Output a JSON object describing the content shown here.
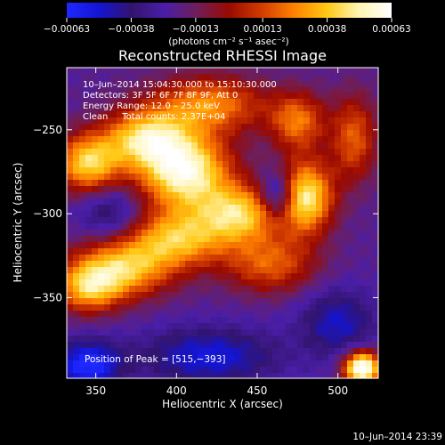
{
  "chart_data": {
    "type": "heatmap",
    "title": "Reconstructed RHESSI Image",
    "xlabel": "Heliocentric X (arcsec)",
    "ylabel": "Heliocentric Y (arcsec)",
    "xlim": [
      332,
      525
    ],
    "ylim": [
      -398,
      -213
    ],
    "x_ticks": [
      350,
      400,
      450,
      500
    ],
    "x_tick_labels": [
      "350",
      "400",
      "450",
      "500"
    ],
    "y_ticks": [
      -250,
      -300,
      -350
    ],
    "y_tick_labels": [
      "−250",
      "−300",
      "−350"
    ],
    "colorbar": {
      "range": [
        -0.00063,
        0.00063
      ],
      "ticks": [
        -0.00063,
        -0.00038,
        -0.00013,
        0.00013,
        0.00038,
        0.00063
      ],
      "tick_labels": [
        "−0.00063",
        "−0.00038",
        "−0.00013",
        "0.00013",
        "0.00038",
        "0.00063"
      ],
      "units_label": "(photons cm⁻² s⁻¹ asec⁻²)",
      "stops": [
        "#1e28ff",
        "#1414d2",
        "#32146e",
        "#4a1ea8",
        "#6e1e5a",
        "#9a0a00",
        "#d23c00",
        "#ff8200",
        "#ffc814",
        "#fff5b4",
        "#ffffff"
      ]
    },
    "annotations": [
      "10–Jun–2014 15:04:30.000 to 15:10:30.000",
      "Detectors: 3F 5F 6F 7F 8F 9F, Att 0",
      "Energy Range: 12.0 – 25.0 keV",
      "Clean     Total counts: 2.37E+04"
    ],
    "peak_label": "Position of Peak = [515,−393]",
    "emission_sources": [
      {
        "x": 405,
        "y": -275,
        "sigma_x": 20,
        "sigma_y": 16,
        "amp": 1.0
      },
      {
        "x": 380,
        "y": -255,
        "sigma_x": 18,
        "sigma_y": 12,
        "amp": 0.75
      },
      {
        "x": 345,
        "y": -270,
        "sigma_x": 14,
        "sigma_y": 12,
        "amp": 0.8
      },
      {
        "x": 420,
        "y": -235,
        "sigma_x": 25,
        "sigma_y": 12,
        "amp": 0.6
      },
      {
        "x": 440,
        "y": -300,
        "sigma_x": 18,
        "sigma_y": 12,
        "amp": 0.75
      },
      {
        "x": 400,
        "y": -315,
        "sigma_x": 22,
        "sigma_y": 12,
        "amp": 0.7
      },
      {
        "x": 365,
        "y": -333,
        "sigma_x": 22,
        "sigma_y": 12,
        "amp": 0.75
      },
      {
        "x": 345,
        "y": -345,
        "sigma_x": 14,
        "sigma_y": 10,
        "amp": 0.6
      },
      {
        "x": 480,
        "y": -290,
        "sigma_x": 12,
        "sigma_y": 15,
        "amp": 0.9
      },
      {
        "x": 475,
        "y": -245,
        "sigma_x": 12,
        "sigma_y": 12,
        "amp": 0.55
      },
      {
        "x": 458,
        "y": -330,
        "sigma_x": 20,
        "sigma_y": 12,
        "amp": 0.5
      },
      {
        "x": 510,
        "y": -255,
        "sigma_x": 10,
        "sigma_y": 18,
        "amp": 0.5
      },
      {
        "x": 515,
        "y": -392,
        "sigma_x": 8,
        "sigma_y": 7,
        "amp": 1.2
      }
    ],
    "negative_regions": [
      {
        "x": 345,
        "y": -390,
        "sigma_x": 14,
        "sigma_y": 10,
        "amp": 0.55
      },
      {
        "x": 420,
        "y": -385,
        "sigma_x": 30,
        "sigma_y": 12,
        "amp": 0.4
      },
      {
        "x": 360,
        "y": -300,
        "sigma_x": 14,
        "sigma_y": 12,
        "amp": 0.3
      },
      {
        "x": 500,
        "y": -365,
        "sigma_x": 16,
        "sigma_y": 14,
        "amp": 0.35
      }
    ],
    "dark_spot": {
      "x": 463,
      "y": -290,
      "sigma_x": 8,
      "sigma_y": 10,
      "amp": 0.55
    }
  },
  "footer": {
    "timestamp": "10–Jun–2014 23:39"
  }
}
